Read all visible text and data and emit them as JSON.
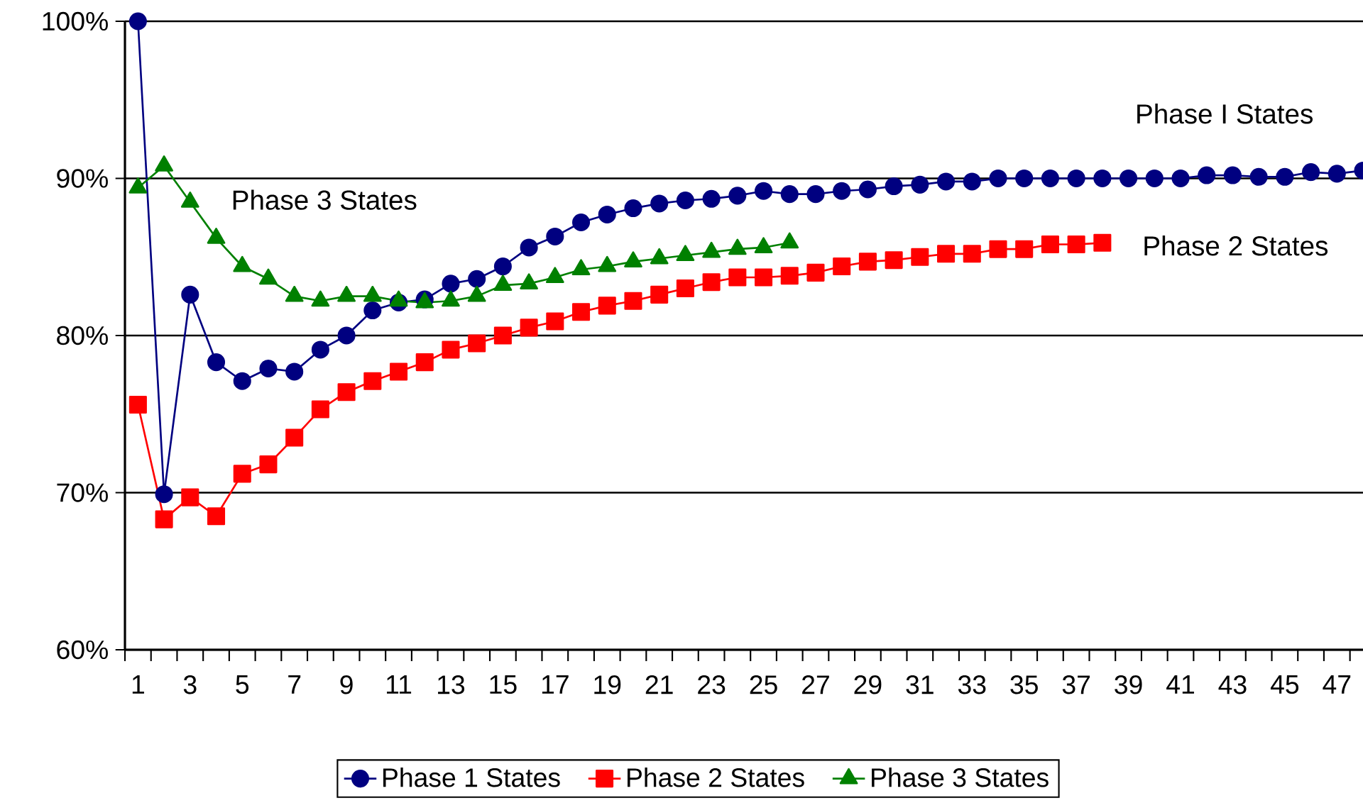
{
  "chart_data": {
    "type": "line",
    "categories": [
      "1",
      null,
      "3",
      null,
      "5",
      null,
      "7",
      null,
      "9",
      null,
      "11",
      null,
      "13",
      null,
      "15",
      null,
      "17",
      null,
      "19",
      null,
      "21",
      null,
      "23",
      null,
      "25",
      null,
      "27",
      null,
      "29",
      null,
      "31",
      null,
      "33",
      null,
      "35",
      null,
      "37",
      null,
      "39",
      null,
      "41",
      null,
      "43",
      null,
      "45",
      null,
      "47",
      null
    ],
    "series": [
      {
        "name": "Phase 1 States",
        "color": "#000080",
        "marker": "circle",
        "values": [
          100,
          69.9,
          82.6,
          78.3,
          77.1,
          77.9,
          77.7,
          79.1,
          80.0,
          81.6,
          82.1,
          82.3,
          83.3,
          83.6,
          84.4,
          85.6,
          86.3,
          87.2,
          87.7,
          88.1,
          88.4,
          88.6,
          88.7,
          88.9,
          89.2,
          89.0,
          89.0,
          89.2,
          89.3,
          89.5,
          89.6,
          89.8,
          89.8,
          90.0,
          90.0,
          90.0,
          90.0,
          90.0,
          90.0,
          90.0,
          90.0,
          90.2,
          90.2,
          90.1,
          90.1,
          90.4,
          90.3,
          90.5
        ]
      },
      {
        "name": "Phase 2 States",
        "color": "#ff0000",
        "marker": "square",
        "values": [
          75.6,
          68.3,
          69.7,
          68.5,
          71.2,
          71.8,
          73.5,
          75.3,
          76.4,
          77.1,
          77.7,
          78.3,
          79.1,
          79.5,
          80.0,
          80.5,
          80.9,
          81.5,
          81.9,
          82.2,
          82.6,
          83.0,
          83.4,
          83.7,
          83.7,
          83.8,
          84.0,
          84.4,
          84.7,
          84.8,
          85.0,
          85.2,
          85.2,
          85.5,
          85.5,
          85.8,
          85.8,
          85.9,
          null,
          null,
          null,
          null,
          null,
          null,
          null,
          null,
          null,
          null
        ]
      },
      {
        "name": "Phase 3 States",
        "color": "#008000",
        "marker": "triangle",
        "values": [
          89.4,
          90.8,
          88.5,
          86.2,
          84.4,
          83.6,
          82.5,
          82.2,
          82.5,
          82.5,
          82.2,
          82.1,
          82.2,
          82.5,
          83.2,
          83.3,
          83.7,
          84.2,
          84.4,
          84.7,
          84.9,
          85.1,
          85.3,
          85.5,
          85.6,
          85.9,
          null,
          null,
          null,
          null,
          null,
          null,
          null,
          null,
          null,
          null,
          null,
          null,
          null,
          null,
          null,
          null,
          null,
          null,
          null,
          null,
          null,
          null
        ]
      }
    ],
    "ylim": [
      60,
      100
    ],
    "yticks": [
      {
        "value": 60,
        "label": "60%"
      },
      {
        "value": 70,
        "label": "70%"
      },
      {
        "value": 80,
        "label": "80%"
      },
      {
        "value": 90,
        "label": "90%"
      },
      {
        "value": 100,
        "label": "100%"
      }
    ],
    "grid": "y",
    "legend": "bottom",
    "annotations": [
      "Phase I States",
      "Phase 3 States",
      "Phase 2 States"
    ]
  }
}
